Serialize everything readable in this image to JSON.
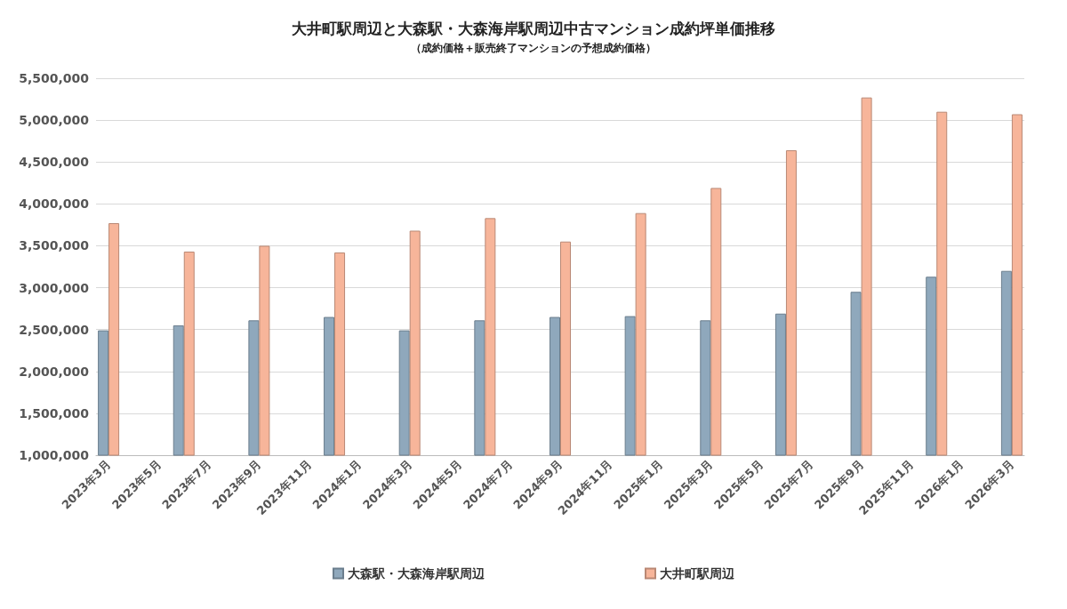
{
  "chart_data": {
    "type": "bar",
    "title": "大井町駅周辺と大森駅・大森海岸駅周辺中古マンション成約坪単価推移",
    "subtitle": "（成約価格＋販売終了マンションの予想成約価格）",
    "categories": [
      "2023年3月",
      null,
      "2023年5月",
      null,
      "2023年7月",
      null,
      "2023年9月",
      null,
      "2023年11月",
      null,
      "2024年1月",
      null,
      "2024年3月",
      null,
      "2024年5月",
      null,
      "2024年7月",
      null,
      "2024年9月",
      null,
      "2024年11月",
      null,
      "2025年1月",
      null,
      "2025年3月",
      null,
      "2025年5月",
      null,
      "2025年7月",
      null,
      "2025年9月",
      null,
      "2025年11月",
      null,
      "2026年1月",
      null,
      "2026年3月"
    ],
    "series": [
      {
        "name": "大森駅・大森海岸駅周辺",
        "color": "#8fa8bc",
        "values": [
          2490000,
          null,
          null,
          2550000,
          null,
          null,
          2610000,
          null,
          null,
          2650000,
          null,
          null,
          2490000,
          null,
          null,
          2610000,
          null,
          null,
          2650000,
          null,
          null,
          2660000,
          null,
          null,
          2610000,
          null,
          null,
          2690000,
          null,
          null,
          2950000,
          null,
          null,
          3130000,
          null,
          null,
          3200000
        ]
      },
      {
        "name": "大井町駅周辺",
        "color": "#f7b59a",
        "values": [
          3770000,
          null,
          null,
          3430000,
          null,
          null,
          3500000,
          null,
          null,
          3420000,
          null,
          null,
          3680000,
          null,
          null,
          3830000,
          null,
          null,
          3550000,
          null,
          null,
          3890000,
          null,
          null,
          4190000,
          null,
          null,
          4640000,
          null,
          null,
          5270000,
          null,
          null,
          5100000,
          null,
          null,
          5070000
        ]
      }
    ],
    "ylim": [
      1000000,
      5500000
    ],
    "yticks": [
      {
        "value": 1000000,
        "label": "1,000,000"
      },
      {
        "value": 1500000,
        "label": "1,500,000"
      },
      {
        "value": 2000000,
        "label": "2,000,000"
      },
      {
        "value": 2500000,
        "label": "2,500,000"
      },
      {
        "value": 3000000,
        "label": "3,000,000"
      },
      {
        "value": 3500000,
        "label": "3,500,000"
      },
      {
        "value": 4000000,
        "label": "4,000,000"
      },
      {
        "value": 4500000,
        "label": "4,500,000"
      },
      {
        "value": 5000000,
        "label": "5,000,000"
      },
      {
        "value": 5500000,
        "label": "5,500,000"
      }
    ],
    "grid": "y",
    "legend": "bottom"
  }
}
